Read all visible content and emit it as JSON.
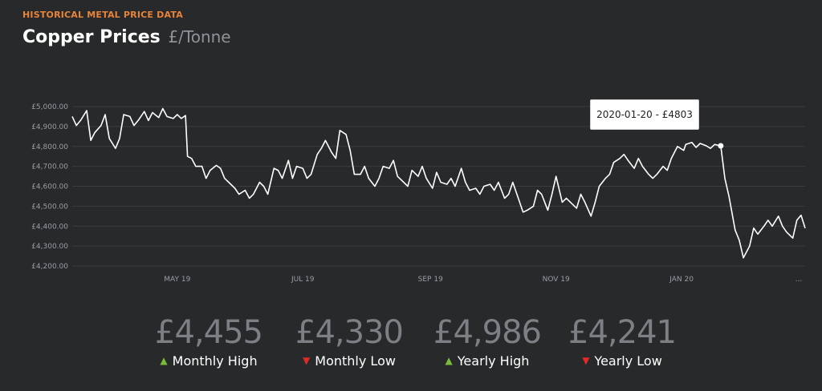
{
  "header": {
    "kicker": "HISTORICAL METAL PRICE DATA",
    "title": "Copper Prices",
    "unit": "£/Tonne"
  },
  "tooltip": {
    "text": "2020-01-20 - £4803"
  },
  "stats": [
    {
      "value": "£4,455",
      "label": "Monthly High",
      "direction": "up"
    },
    {
      "value": "£4,330",
      "label": "Monthly Low",
      "direction": "down"
    },
    {
      "value": "£4,986",
      "label": "Yearly High",
      "direction": "up"
    },
    {
      "value": "£4,241",
      "label": "Yearly Low",
      "direction": "down"
    }
  ],
  "colors": {
    "background": "#27292b",
    "line": "#ffffff",
    "grid": "#3a3d40",
    "kicker": "#e8833a",
    "up": "#7cbb3a",
    "down": "#e02a2a"
  },
  "icons": {
    "up": "▲",
    "down": "▼"
  },
  "chart_data": {
    "type": "line",
    "y_tick_labels": [
      "£4,200.00",
      "£4,300.00",
      "£4,400.00",
      "£4,500.00",
      "£4,600.00",
      "£4,700.00",
      "£4,800.00",
      "£4,900.00",
      "£5,000.00"
    ],
    "y_ticks": [
      4200,
      4300,
      4400,
      4500,
      4600,
      4700,
      4800,
      4900,
      5000
    ],
    "ylim": [
      4200,
      5000
    ],
    "x_tick_labels": [
      "MAY 19",
      "JUL 19",
      "SEP 19",
      "NOV 19",
      "JAN 20",
      "..."
    ],
    "x_tick_dates": [
      "2019-05-01",
      "2019-07-01",
      "2019-09-01",
      "2019-11-01",
      "2020-01-01",
      "2020-03-01"
    ],
    "xlim": [
      "2019-03-11",
      "2020-03-01"
    ],
    "grid": true,
    "highlight": {
      "date": "2020-01-20",
      "value": 4803
    },
    "series": [
      {
        "points": [
          [
            "2019-03-11",
            4950
          ],
          [
            "2019-03-13",
            4905
          ],
          [
            "2019-03-15",
            4930
          ],
          [
            "2019-03-18",
            4980
          ],
          [
            "2019-03-20",
            4830
          ],
          [
            "2019-03-22",
            4870
          ],
          [
            "2019-03-25",
            4905
          ],
          [
            "2019-03-27",
            4960
          ],
          [
            "2019-03-29",
            4840
          ],
          [
            "2019-04-01",
            4790
          ],
          [
            "2019-04-03",
            4840
          ],
          [
            "2019-04-05",
            4960
          ],
          [
            "2019-04-08",
            4950
          ],
          [
            "2019-04-10",
            4905
          ],
          [
            "2019-04-12",
            4930
          ],
          [
            "2019-04-15",
            4975
          ],
          [
            "2019-04-17",
            4930
          ],
          [
            "2019-04-19",
            4970
          ],
          [
            "2019-04-22",
            4945
          ],
          [
            "2019-04-24",
            4990
          ],
          [
            "2019-04-26",
            4950
          ],
          [
            "2019-04-29",
            4940
          ],
          [
            "2019-05-01",
            4960
          ],
          [
            "2019-05-03",
            4940
          ],
          [
            "2019-05-05",
            4955
          ],
          [
            "2019-05-06",
            4750
          ],
          [
            "2019-05-08",
            4740
          ],
          [
            "2019-05-10",
            4700
          ],
          [
            "2019-05-13",
            4700
          ],
          [
            "2019-05-15",
            4640
          ],
          [
            "2019-05-17",
            4680
          ],
          [
            "2019-05-20",
            4705
          ],
          [
            "2019-05-22",
            4690
          ],
          [
            "2019-05-24",
            4640
          ],
          [
            "2019-05-27",
            4610
          ],
          [
            "2019-05-29",
            4590
          ],
          [
            "2019-05-31",
            4560
          ],
          [
            "2019-06-03",
            4580
          ],
          [
            "2019-06-05",
            4540
          ],
          [
            "2019-06-07",
            4560
          ],
          [
            "2019-06-10",
            4620
          ],
          [
            "2019-06-12",
            4600
          ],
          [
            "2019-06-14",
            4560
          ],
          [
            "2019-06-17",
            4690
          ],
          [
            "2019-06-19",
            4680
          ],
          [
            "2019-06-21",
            4640
          ],
          [
            "2019-06-24",
            4730
          ],
          [
            "2019-06-26",
            4640
          ],
          [
            "2019-06-28",
            4700
          ],
          [
            "2019-07-01",
            4690
          ],
          [
            "2019-07-03",
            4640
          ],
          [
            "2019-07-05",
            4660
          ],
          [
            "2019-07-08",
            4760
          ],
          [
            "2019-07-10",
            4790
          ],
          [
            "2019-07-12",
            4830
          ],
          [
            "2019-07-15",
            4770
          ],
          [
            "2019-07-17",
            4740
          ],
          [
            "2019-07-19",
            4880
          ],
          [
            "2019-07-22",
            4860
          ],
          [
            "2019-07-24",
            4780
          ],
          [
            "2019-07-26",
            4660
          ],
          [
            "2019-07-29",
            4660
          ],
          [
            "2019-07-31",
            4700
          ],
          [
            "2019-08-02",
            4640
          ],
          [
            "2019-08-05",
            4600
          ],
          [
            "2019-08-07",
            4640
          ],
          [
            "2019-08-09",
            4700
          ],
          [
            "2019-08-12",
            4690
          ],
          [
            "2019-08-14",
            4730
          ],
          [
            "2019-08-16",
            4650
          ],
          [
            "2019-08-19",
            4620
          ],
          [
            "2019-08-21",
            4600
          ],
          [
            "2019-08-23",
            4680
          ],
          [
            "2019-08-26",
            4650
          ],
          [
            "2019-08-28",
            4700
          ],
          [
            "2019-08-30",
            4640
          ],
          [
            "2019-09-02",
            4590
          ],
          [
            "2019-09-04",
            4670
          ],
          [
            "2019-09-06",
            4620
          ],
          [
            "2019-09-09",
            4610
          ],
          [
            "2019-09-11",
            4640
          ],
          [
            "2019-09-13",
            4600
          ],
          [
            "2019-09-16",
            4690
          ],
          [
            "2019-09-18",
            4620
          ],
          [
            "2019-09-20",
            4580
          ],
          [
            "2019-09-23",
            4590
          ],
          [
            "2019-09-25",
            4560
          ],
          [
            "2019-09-27",
            4600
          ],
          [
            "2019-09-30",
            4610
          ],
          [
            "2019-10-02",
            4580
          ],
          [
            "2019-10-04",
            4620
          ],
          [
            "2019-10-07",
            4540
          ],
          [
            "2019-10-09",
            4560
          ],
          [
            "2019-10-11",
            4620
          ],
          [
            "2019-10-14",
            4530
          ],
          [
            "2019-10-16",
            4470
          ],
          [
            "2019-10-18",
            4480
          ],
          [
            "2019-10-21",
            4500
          ],
          [
            "2019-10-23",
            4580
          ],
          [
            "2019-10-25",
            4560
          ],
          [
            "2019-10-28",
            4480
          ],
          [
            "2019-10-30",
            4560
          ],
          [
            "2019-11-01",
            4650
          ],
          [
            "2019-11-04",
            4520
          ],
          [
            "2019-11-06",
            4540
          ],
          [
            "2019-11-08",
            4520
          ],
          [
            "2019-11-11",
            4490
          ],
          [
            "2019-11-13",
            4560
          ],
          [
            "2019-11-15",
            4520
          ],
          [
            "2019-11-18",
            4450
          ],
          [
            "2019-11-20",
            4520
          ],
          [
            "2019-11-22",
            4600
          ],
          [
            "2019-11-25",
            4640
          ],
          [
            "2019-11-27",
            4660
          ],
          [
            "2019-11-29",
            4720
          ],
          [
            "2019-12-02",
            4740
          ],
          [
            "2019-12-04",
            4760
          ],
          [
            "2019-12-06",
            4730
          ],
          [
            "2019-12-09",
            4690
          ],
          [
            "2019-12-11",
            4740
          ],
          [
            "2019-12-13",
            4700
          ],
          [
            "2019-12-16",
            4660
          ],
          [
            "2019-12-18",
            4640
          ],
          [
            "2019-12-20",
            4660
          ],
          [
            "2019-12-23",
            4700
          ],
          [
            "2019-12-25",
            4680
          ],
          [
            "2019-12-27",
            4740
          ],
          [
            "2019-12-30",
            4800
          ],
          [
            "2020-01-02",
            4780
          ],
          [
            "2020-01-03",
            4810
          ],
          [
            "2020-01-06",
            4820
          ],
          [
            "2020-01-08",
            4795
          ],
          [
            "2020-01-10",
            4815
          ],
          [
            "2020-01-13",
            4803
          ],
          [
            "2020-01-15",
            4790
          ],
          [
            "2020-01-17",
            4810
          ],
          [
            "2020-01-20",
            4803
          ],
          [
            "2020-01-22",
            4640
          ],
          [
            "2020-01-24",
            4550
          ],
          [
            "2020-01-27",
            4380
          ],
          [
            "2020-01-29",
            4330
          ],
          [
            "2020-01-31",
            4241
          ],
          [
            "2020-02-03",
            4300
          ],
          [
            "2020-02-05",
            4390
          ],
          [
            "2020-02-07",
            4360
          ],
          [
            "2020-02-10",
            4400
          ],
          [
            "2020-02-12",
            4430
          ],
          [
            "2020-02-14",
            4400
          ],
          [
            "2020-02-17",
            4450
          ],
          [
            "2020-02-19",
            4400
          ],
          [
            "2020-02-21",
            4370
          ],
          [
            "2020-02-24",
            4340
          ],
          [
            "2020-02-26",
            4430
          ],
          [
            "2020-02-28",
            4455
          ],
          [
            "2020-03-01",
            4390
          ]
        ]
      }
    ]
  }
}
